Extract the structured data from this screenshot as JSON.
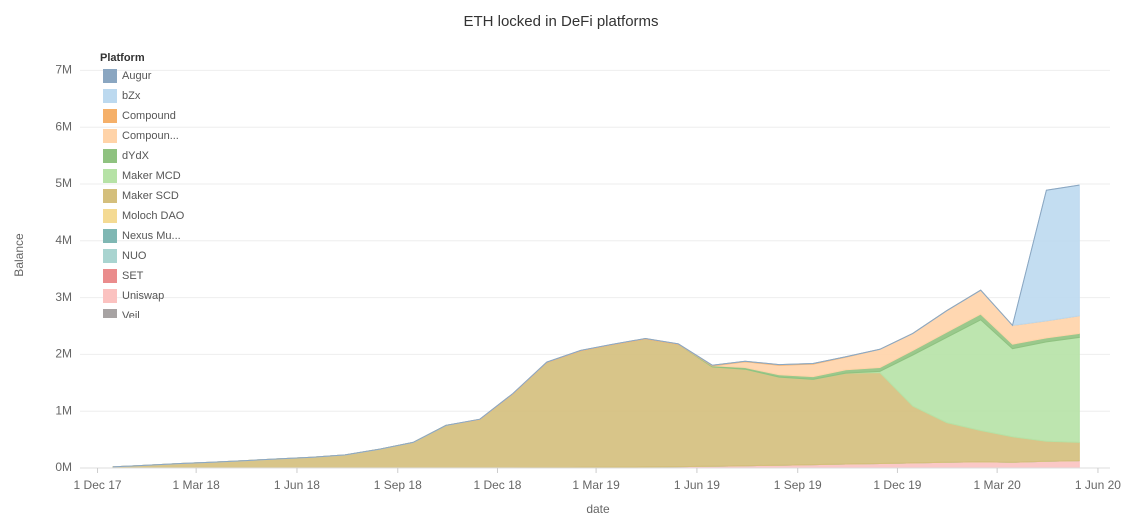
{
  "chart_data": {
    "type": "area",
    "stacked": true,
    "title": "ETH locked in DeFi platforms",
    "x_label": "date",
    "y_label": "Balance",
    "legend_title": "Platform",
    "legend_position": "top-left",
    "x": [
      "2017-12-15",
      "2018-01-15",
      "2018-02-15",
      "2018-03-15",
      "2018-04-15",
      "2018-05-15",
      "2018-06-15",
      "2018-07-15",
      "2018-08-15",
      "2018-09-15",
      "2018-10-15",
      "2018-11-15",
      "2018-12-15",
      "2019-01-15",
      "2019-02-15",
      "2019-03-15",
      "2019-04-15",
      "2019-05-15",
      "2019-06-15",
      "2019-07-15",
      "2019-08-15",
      "2019-09-15",
      "2019-10-15",
      "2019-11-15",
      "2019-12-15",
      "2020-01-15",
      "2020-02-15",
      "2020-03-15",
      "2020-04-15",
      "2020-05-15"
    ],
    "xlim": [
      "2017-11-15",
      "2020-06-12"
    ],
    "xticks": [
      {
        "value": "2017-12-01",
        "label": "1 Dec 17"
      },
      {
        "value": "2018-03-01",
        "label": "1 Mar 18"
      },
      {
        "value": "2018-06-01",
        "label": "1 Jun 18"
      },
      {
        "value": "2018-09-01",
        "label": "1 Sep 18"
      },
      {
        "value": "2018-12-01",
        "label": "1 Dec 18"
      },
      {
        "value": "2019-03-01",
        "label": "1 Mar 19"
      },
      {
        "value": "2019-06-01",
        "label": "1 Jun 19"
      },
      {
        "value": "2019-09-01",
        "label": "1 Sep 19"
      },
      {
        "value": "2019-12-01",
        "label": "1 Dec 19"
      },
      {
        "value": "2020-03-01",
        "label": "1 Mar 20"
      },
      {
        "value": "2020-06-01",
        "label": "1 Jun 20"
      }
    ],
    "ylim": [
      0,
      7500000
    ],
    "yticks": [
      {
        "value": 0,
        "label": "0M"
      },
      {
        "value": 1000000,
        "label": "1M"
      },
      {
        "value": 2000000,
        "label": "2M"
      },
      {
        "value": 3000000,
        "label": "3M"
      },
      {
        "value": 4000000,
        "label": "4M"
      },
      {
        "value": 5000000,
        "label": "5M"
      },
      {
        "value": 6000000,
        "label": "6M"
      },
      {
        "value": 7000000,
        "label": "7M"
      }
    ],
    "grid": true,
    "series": [
      {
        "name": "Augur",
        "color": "#8aa6c1",
        "values": [
          0,
          0,
          0,
          0,
          0,
          0,
          0,
          0,
          0,
          0,
          0,
          0,
          0,
          0,
          0,
          0,
          0,
          0,
          0,
          0,
          0,
          0,
          0,
          0,
          0,
          0,
          0,
          0,
          0,
          0
        ]
      },
      {
        "name": "bZx",
        "color": "#bcd9ef",
        "values": [
          0,
          0,
          0,
          0,
          0,
          0,
          0,
          0,
          0,
          0,
          0,
          0,
          0,
          0,
          0,
          0,
          0,
          0,
          0,
          0,
          0,
          0,
          0,
          0,
          0,
          0,
          0,
          0,
          2300000,
          2300000
        ]
      },
      {
        "name": "Compound",
        "color": "#f5b069",
        "values": [
          0,
          0,
          0,
          0,
          0,
          0,
          0,
          0,
          0,
          0,
          0,
          10000,
          10000,
          10000,
          10000,
          10000,
          10000,
          10000,
          10000,
          10000,
          10000,
          10000,
          10000,
          0,
          0,
          0,
          0,
          0,
          0,
          0
        ]
      },
      {
        "name": "Compoun...",
        "color": "#ffd3a8",
        "values": [
          0,
          0,
          0,
          0,
          0,
          0,
          0,
          0,
          0,
          0,
          0,
          0,
          0,
          0,
          0,
          0,
          0,
          0,
          0,
          100000,
          170000,
          220000,
          220000,
          320000,
          300000,
          380000,
          420000,
          330000,
          300000,
          310000
        ]
      },
      {
        "name": "dYdX",
        "color": "#8fc280",
        "values": [
          0,
          0,
          0,
          0,
          0,
          0,
          0,
          0,
          0,
          0,
          0,
          0,
          0,
          0,
          0,
          0,
          0,
          0,
          20000,
          30000,
          40000,
          50000,
          60000,
          70000,
          80000,
          90000,
          100000,
          80000,
          70000,
          70000
        ]
      },
      {
        "name": "Maker MCD",
        "color": "#b6e2a6",
        "values": [
          0,
          0,
          0,
          0,
          0,
          0,
          0,
          0,
          0,
          0,
          0,
          0,
          0,
          0,
          0,
          0,
          0,
          0,
          0,
          0,
          0,
          0,
          0,
          20000,
          900000,
          1500000,
          1950000,
          1550000,
          1750000,
          1850000
        ]
      },
      {
        "name": "Maker SCD",
        "color": "#d4bf7c",
        "values": [
          20000,
          50000,
          80000,
          100000,
          130000,
          160000,
          190000,
          230000,
          330000,
          450000,
          750000,
          850000,
          1300000,
          1850000,
          2050000,
          2150000,
          2250000,
          2150000,
          1750000,
          1700000,
          1550000,
          1500000,
          1600000,
          1600000,
          1000000,
          700000,
          550000,
          450000,
          350000,
          320000
        ]
      },
      {
        "name": "Moloch DAO",
        "color": "#f4da93",
        "values": [
          0,
          0,
          0,
          0,
          0,
          0,
          0,
          0,
          0,
          0,
          0,
          0,
          0,
          0,
          0,
          0,
          0,
          0,
          0,
          0,
          0,
          0,
          0,
          0,
          0,
          0,
          0,
          0,
          0,
          0
        ]
      },
      {
        "name": "Nexus Mu...",
        "color": "#7fb7b3",
        "values": [
          0,
          0,
          0,
          0,
          0,
          0,
          0,
          0,
          0,
          0,
          0,
          0,
          0,
          0,
          0,
          0,
          0,
          0,
          0,
          0,
          0,
          0,
          0,
          0,
          0,
          0,
          0,
          0,
          0,
          0
        ]
      },
      {
        "name": "NUO",
        "color": "#a9d4d0",
        "values": [
          0,
          0,
          0,
          0,
          0,
          0,
          0,
          0,
          0,
          0,
          0,
          0,
          0,
          0,
          0,
          0,
          0,
          0,
          0,
          0,
          0,
          0,
          0,
          0,
          0,
          0,
          0,
          0,
          0,
          0
        ]
      },
      {
        "name": "SET",
        "color": "#ea8c8c",
        "values": [
          0,
          0,
          0,
          0,
          0,
          0,
          0,
          0,
          0,
          0,
          0,
          0,
          0,
          0,
          0,
          0,
          0,
          0,
          0,
          0,
          0,
          0,
          0,
          0,
          0,
          0,
          0,
          0,
          0,
          0
        ]
      },
      {
        "name": "Uniswap",
        "color": "#fbc2c0",
        "values": [
          0,
          0,
          0,
          0,
          0,
          0,
          0,
          0,
          0,
          0,
          0,
          0,
          0,
          5000,
          10000,
          15000,
          20000,
          25000,
          30000,
          40000,
          50000,
          60000,
          70000,
          80000,
          90000,
          100000,
          110000,
          100000,
          120000,
          130000
        ]
      },
      {
        "name": "Veil",
        "color": "#a7a3a3",
        "values": [
          0,
          0,
          0,
          0,
          0,
          0,
          0,
          0,
          0,
          0,
          0,
          0,
          0,
          0,
          0,
          0,
          0,
          0,
          0,
          0,
          0,
          0,
          0,
          0,
          0,
          0,
          0,
          0,
          0,
          0
        ]
      }
    ]
  }
}
